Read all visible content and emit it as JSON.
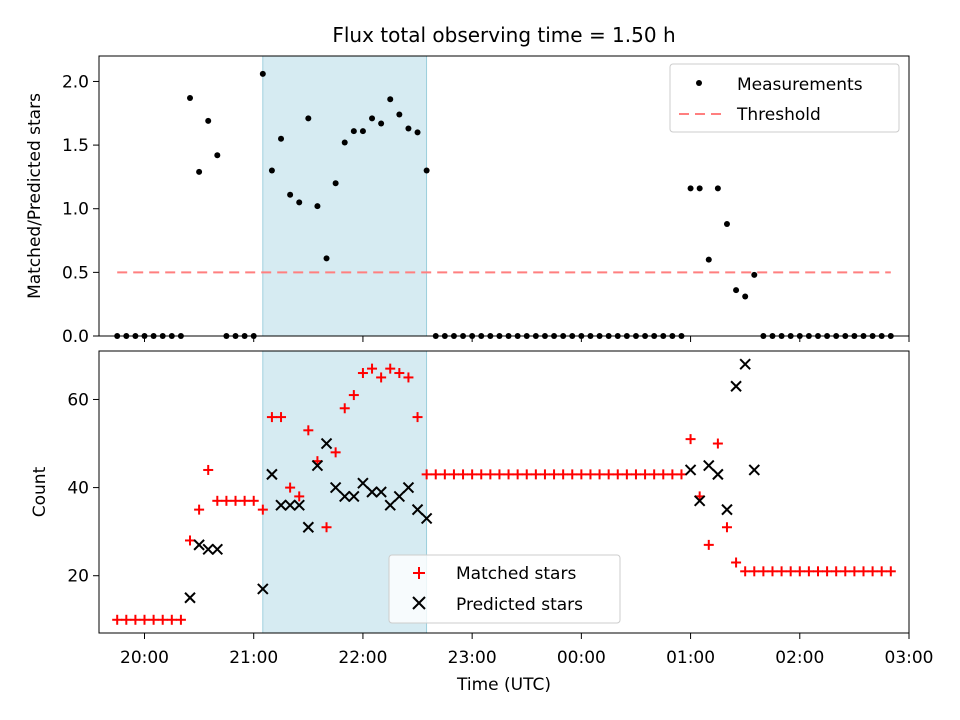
{
  "chart_data": [
    {
      "type": "scatter",
      "title": "Flux total observing time = 1.50 h",
      "ylabel": "Matched/Predicted stars",
      "xlabel": "",
      "ylim": [
        0,
        2.2
      ],
      "xlim": [
        "19:35",
        "03:00"
      ],
      "yticks": [
        "0.0",
        "0.5",
        "1.0",
        "1.5",
        "2.0"
      ],
      "highlight_span": [
        "21:05",
        "22:35"
      ],
      "legend_position": "top-right",
      "threshold": {
        "name": "Threshold",
        "value": 0.5,
        "x_range": [
          "19:45",
          "02:50"
        ],
        "color": "#ff7f7f"
      },
      "series": [
        {
          "name": "Measurements",
          "color": "#000000",
          "points": [
            [
              "19:45",
              0
            ],
            [
              "19:50",
              0
            ],
            [
              "19:55",
              0
            ],
            [
              "20:00",
              0
            ],
            [
              "20:05",
              0
            ],
            [
              "20:10",
              0
            ],
            [
              "20:15",
              0
            ],
            [
              "20:20",
              0
            ],
            [
              "20:25",
              1.87
            ],
            [
              "20:30",
              1.29
            ],
            [
              "20:35",
              1.69
            ],
            [
              "20:40",
              1.42
            ],
            [
              "20:45",
              0
            ],
            [
              "20:50",
              0
            ],
            [
              "20:55",
              0
            ],
            [
              "21:00",
              0
            ],
            [
              "21:05",
              2.06
            ],
            [
              "21:10",
              1.3
            ],
            [
              "21:15",
              1.55
            ],
            [
              "21:20",
              1.11
            ],
            [
              "21:25",
              1.05
            ],
            [
              "21:30",
              1.71
            ],
            [
              "21:35",
              1.02
            ],
            [
              "21:40",
              0.61
            ],
            [
              "21:45",
              1.2
            ],
            [
              "21:50",
              1.52
            ],
            [
              "21:55",
              1.61
            ],
            [
              "22:00",
              1.61
            ],
            [
              "22:05",
              1.71
            ],
            [
              "22:10",
              1.67
            ],
            [
              "22:15",
              1.86
            ],
            [
              "22:20",
              1.74
            ],
            [
              "22:25",
              1.63
            ],
            [
              "22:30",
              1.6
            ],
            [
              "22:35",
              1.3
            ],
            [
              "22:40",
              0
            ],
            [
              "22:45",
              0
            ],
            [
              "22:50",
              0
            ],
            [
              "22:55",
              0
            ],
            [
              "23:00",
              0
            ],
            [
              "23:05",
              0
            ],
            [
              "23:10",
              0
            ],
            [
              "23:15",
              0
            ],
            [
              "23:20",
              0
            ],
            [
              "23:25",
              0
            ],
            [
              "23:30",
              0
            ],
            [
              "23:35",
              0
            ],
            [
              "23:40",
              0
            ],
            [
              "23:45",
              0
            ],
            [
              "23:50",
              0
            ],
            [
              "23:55",
              0
            ],
            [
              "00:00",
              0
            ],
            [
              "00:05",
              0
            ],
            [
              "00:10",
              0
            ],
            [
              "00:15",
              0
            ],
            [
              "00:20",
              0
            ],
            [
              "00:25",
              0
            ],
            [
              "00:30",
              0
            ],
            [
              "00:35",
              0
            ],
            [
              "00:40",
              0
            ],
            [
              "00:45",
              0
            ],
            [
              "00:50",
              0
            ],
            [
              "00:55",
              0
            ],
            [
              "01:00",
              1.16
            ],
            [
              "01:05",
              1.16
            ],
            [
              "01:10",
              0.6
            ],
            [
              "01:15",
              1.16
            ],
            [
              "01:20",
              0.88
            ],
            [
              "01:25",
              0.36
            ],
            [
              "01:30",
              0.31
            ],
            [
              "01:35",
              0.48
            ],
            [
              "01:40",
              0
            ],
            [
              "01:45",
              0
            ],
            [
              "01:50",
              0
            ],
            [
              "01:55",
              0
            ],
            [
              "02:00",
              0
            ],
            [
              "02:05",
              0
            ],
            [
              "02:10",
              0
            ],
            [
              "02:15",
              0
            ],
            [
              "02:20",
              0
            ],
            [
              "02:25",
              0
            ],
            [
              "02:30",
              0
            ],
            [
              "02:35",
              0
            ],
            [
              "02:40",
              0
            ],
            [
              "02:45",
              0
            ],
            [
              "02:50",
              0
            ]
          ]
        }
      ]
    },
    {
      "type": "scatter",
      "title": "",
      "ylabel": "Count",
      "xlabel": "Time (UTC)",
      "ylim": [
        7,
        71
      ],
      "xlim": [
        "19:35",
        "03:00"
      ],
      "yticks": [
        "20",
        "40",
        "60"
      ],
      "xticks": [
        "20:00",
        "21:00",
        "22:00",
        "23:00",
        "00:00",
        "01:00",
        "02:00",
        "03:00"
      ],
      "highlight_span": [
        "21:05",
        "22:35"
      ],
      "legend_position": "lower-center",
      "series": [
        {
          "name": "Matched stars",
          "marker": "plus",
          "color": "#ff0000",
          "points": [
            [
              "19:45",
              10
            ],
            [
              "19:50",
              10
            ],
            [
              "19:55",
              10
            ],
            [
              "20:00",
              10
            ],
            [
              "20:05",
              10
            ],
            [
              "20:10",
              10
            ],
            [
              "20:15",
              10
            ],
            [
              "20:20",
              10
            ],
            [
              "20:25",
              28
            ],
            [
              "20:30",
              35
            ],
            [
              "20:35",
              44
            ],
            [
              "20:40",
              37
            ],
            [
              "20:45",
              37
            ],
            [
              "20:50",
              37
            ],
            [
              "20:55",
              37
            ],
            [
              "21:00",
              37
            ],
            [
              "21:05",
              35
            ],
            [
              "21:10",
              56
            ],
            [
              "21:15",
              56
            ],
            [
              "21:20",
              40
            ],
            [
              "21:25",
              38
            ],
            [
              "21:30",
              53
            ],
            [
              "21:35",
              46
            ],
            [
              "21:40",
              31
            ],
            [
              "21:45",
              48
            ],
            [
              "21:50",
              58
            ],
            [
              "21:55",
              61
            ],
            [
              "22:00",
              66
            ],
            [
              "22:05",
              67
            ],
            [
              "22:10",
              65
            ],
            [
              "22:15",
              67
            ],
            [
              "22:20",
              66
            ],
            [
              "22:25",
              65
            ],
            [
              "22:30",
              56
            ],
            [
              "22:35",
              43
            ],
            [
              "22:40",
              43
            ],
            [
              "22:45",
              43
            ],
            [
              "22:50",
              43
            ],
            [
              "22:55",
              43
            ],
            [
              "23:00",
              43
            ],
            [
              "23:05",
              43
            ],
            [
              "23:10",
              43
            ],
            [
              "23:15",
              43
            ],
            [
              "23:20",
              43
            ],
            [
              "23:25",
              43
            ],
            [
              "23:30",
              43
            ],
            [
              "23:35",
              43
            ],
            [
              "23:40",
              43
            ],
            [
              "23:45",
              43
            ],
            [
              "23:50",
              43
            ],
            [
              "23:55",
              43
            ],
            [
              "00:00",
              43
            ],
            [
              "00:05",
              43
            ],
            [
              "00:10",
              43
            ],
            [
              "00:15",
              43
            ],
            [
              "00:20",
              43
            ],
            [
              "00:25",
              43
            ],
            [
              "00:30",
              43
            ],
            [
              "00:35",
              43
            ],
            [
              "00:40",
              43
            ],
            [
              "00:45",
              43
            ],
            [
              "00:50",
              43
            ],
            [
              "00:55",
              43
            ],
            [
              "01:00",
              51
            ],
            [
              "01:05",
              38
            ],
            [
              "01:10",
              27
            ],
            [
              "01:15",
              50
            ],
            [
              "01:20",
              31
            ],
            [
              "01:25",
              23
            ],
            [
              "01:30",
              21
            ],
            [
              "01:35",
              21
            ],
            [
              "01:40",
              21
            ],
            [
              "01:45",
              21
            ],
            [
              "01:50",
              21
            ],
            [
              "01:55",
              21
            ],
            [
              "02:00",
              21
            ],
            [
              "02:05",
              21
            ],
            [
              "02:10",
              21
            ],
            [
              "02:15",
              21
            ],
            [
              "02:20",
              21
            ],
            [
              "02:25",
              21
            ],
            [
              "02:30",
              21
            ],
            [
              "02:35",
              21
            ],
            [
              "02:40",
              21
            ],
            [
              "02:45",
              21
            ],
            [
              "02:50",
              21
            ]
          ]
        },
        {
          "name": "Predicted stars",
          "marker": "x",
          "color": "#000000",
          "points": [
            [
              "20:25",
              15
            ],
            [
              "20:30",
              27
            ],
            [
              "20:35",
              26
            ],
            [
              "20:40",
              26
            ],
            [
              "21:05",
              17
            ],
            [
              "21:10",
              43
            ],
            [
              "21:15",
              36
            ],
            [
              "21:20",
              36
            ],
            [
              "21:25",
              36
            ],
            [
              "21:30",
              31
            ],
            [
              "21:35",
              45
            ],
            [
              "21:40",
              50
            ],
            [
              "21:45",
              40
            ],
            [
              "21:50",
              38
            ],
            [
              "21:55",
              38
            ],
            [
              "22:00",
              41
            ],
            [
              "22:05",
              39
            ],
            [
              "22:10",
              39
            ],
            [
              "22:15",
              36
            ],
            [
              "22:20",
              38
            ],
            [
              "22:25",
              40
            ],
            [
              "22:30",
              35
            ],
            [
              "22:35",
              33
            ],
            [
              "01:00",
              44
            ],
            [
              "01:05",
              37
            ],
            [
              "01:10",
              45
            ],
            [
              "01:15",
              43
            ],
            [
              "01:20",
              35
            ],
            [
              "01:25",
              63
            ],
            [
              "01:30",
              68
            ],
            [
              "01:35",
              44
            ]
          ]
        }
      ]
    }
  ]
}
